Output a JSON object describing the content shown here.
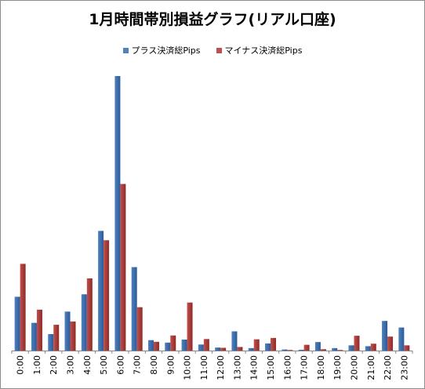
{
  "chart_data": {
    "type": "bar",
    "title": "1月時間帯別損益グラフ(リアル口座)",
    "xlabel": "",
    "ylabel": "",
    "ylim": [
      0,
      100
    ],
    "legend_position": "top",
    "grid": false,
    "categories": [
      "0:00",
      "1:00",
      "2:00",
      "3:00",
      "4:00",
      "5:00",
      "6:00",
      "7:00",
      "8:00",
      "9:00",
      "10:00",
      "11:00",
      "12:00",
      "13:00",
      "14:00",
      "15:00",
      "16:00",
      "17:00",
      "18:00",
      "19:00",
      "20:00",
      "21:00",
      "22:00",
      "23:00"
    ],
    "series": [
      {
        "name": "プラス決済総Pips",
        "color": "#4f81bd",
        "values": [
          19.6,
          10.1,
          6.0,
          14.2,
          20.5,
          43.6,
          100,
          30.4,
          3.8,
          2.9,
          4.0,
          2.2,
          1.1,
          7.0,
          0.9,
          2.6,
          0.4,
          0.3,
          3.1,
          0.9,
          1.9,
          1.6,
          10.8,
          8.4
        ]
      },
      {
        "name": "マイナス決済総Pips",
        "color": "#c0504d",
        "values": [
          31.6,
          14.9,
          9.4,
          10.6,
          26.3,
          40.2,
          60.7,
          15.8,
          3.2,
          5.5,
          17.5,
          4.2,
          1.0,
          1.3,
          4.1,
          4.6,
          0.2,
          2.1,
          0.5,
          0.2,
          5.4,
          2.5,
          5.1,
          1.9
        ]
      }
    ]
  }
}
